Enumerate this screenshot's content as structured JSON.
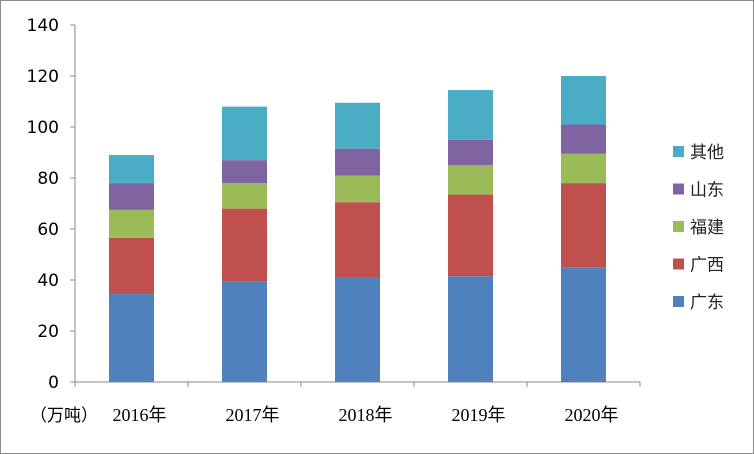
{
  "chart_data": {
    "type": "bar",
    "stacked": true,
    "unit_label": "（万吨）",
    "categories": [
      "2016年",
      "2017年",
      "2018年",
      "2019年",
      "2020年"
    ],
    "ylim": [
      0,
      140
    ],
    "yticks": [
      0,
      20,
      40,
      60,
      80,
      100,
      120,
      140
    ],
    "grid": false,
    "legend_position": "right",
    "series": [
      {
        "name": "广东",
        "color": "#4F81BD",
        "values": [
          34.5,
          39.5,
          41,
          41.5,
          45
        ]
      },
      {
        "name": "广西",
        "color": "#C0504D",
        "values": [
          22,
          28.5,
          29.5,
          32,
          33
        ]
      },
      {
        "name": "福建",
        "color": "#9BBB59",
        "values": [
          11,
          10,
          10.5,
          11.5,
          11.5
        ]
      },
      {
        "name": "山东",
        "color": "#8064A2",
        "values": [
          10.5,
          9,
          10.5,
          10,
          11.5
        ]
      },
      {
        "name": "其他",
        "color": "#4BACC6",
        "values": [
          11,
          21,
          18,
          19.5,
          19
        ]
      }
    ]
  }
}
